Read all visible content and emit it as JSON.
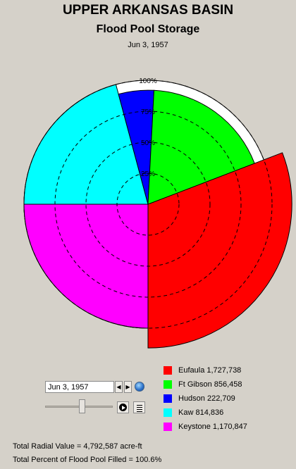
{
  "header": {
    "title": "UPPER ARKANSAS BASIN",
    "subtitle": "Flood Pool Storage",
    "date": "Jun 3, 1957"
  },
  "controls": {
    "date_value": "Jun 3, 1957",
    "prev_label": "◀",
    "next_label": "▶",
    "slider_position": 0.55
  },
  "footer": {
    "total_radial": "Total Radial Value =  4,792,587 acre-ft",
    "total_percent": "Total Percent of Flood Pool Filled =  100.6%"
  },
  "colors": {
    "background": "#d5d1c9",
    "Eufaula": "#ff0000",
    "Ft Gibson": "#00ff00",
    "Hudson": "#0000ff",
    "Kaw": "#00ffff",
    "Keystone": "#ff00ff"
  },
  "chart_data": {
    "type": "polar-area",
    "ring_labels": [
      "25%",
      "50%",
      "75%",
      "100%"
    ],
    "rings": [
      25,
      50,
      75,
      100
    ],
    "outer_reference": 100,
    "slices": [
      {
        "name": "Eufaula",
        "label": "Eufaula  1,727,738",
        "value": 1727738,
        "percent_full": 116,
        "start_deg": -21,
        "end_deg": 90,
        "color": "#ff0000"
      },
      {
        "name": "Keystone",
        "label": "Keystone  1,170,847",
        "value": 1170847,
        "percent_full": 100,
        "start_deg": 90,
        "end_deg": 180,
        "color": "#ff00ff"
      },
      {
        "name": "Kaw",
        "label": "Kaw  814,836",
        "value": 814836,
        "percent_full": 100,
        "start_deg": 180,
        "end_deg": 255,
        "color": "#00ffff"
      },
      {
        "name": "Hudson",
        "label": "Hudson  222,709",
        "value": 222709,
        "percent_full": 92,
        "start_deg": 255,
        "end_deg": 273,
        "color": "#0000ff"
      },
      {
        "name": "Ft Gibson",
        "label": "Ft Gibson  856,458",
        "value": 856458,
        "percent_full": 92,
        "start_deg": 273,
        "end_deg": 339,
        "color": "#00ff00"
      }
    ],
    "legend_order": [
      "Eufaula",
      "Ft Gibson",
      "Hudson",
      "Kaw",
      "Keystone"
    ]
  }
}
